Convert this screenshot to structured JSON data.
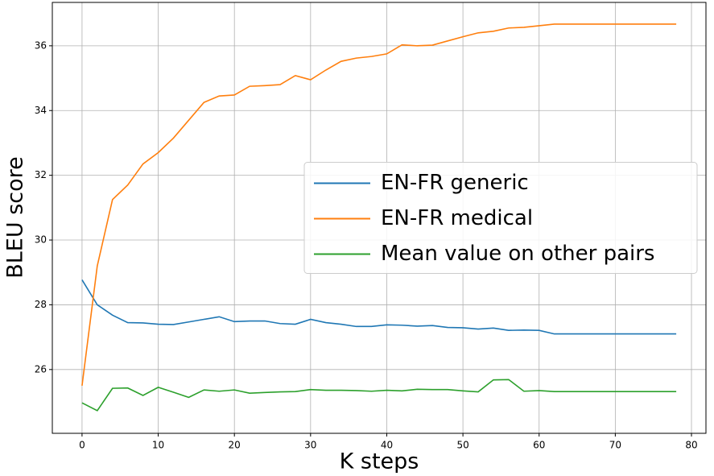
{
  "chart_data": {
    "type": "line",
    "x_label": "K steps",
    "y_label": "BLEU score",
    "x": [
      0,
      2,
      4,
      6,
      8,
      10,
      12,
      14,
      16,
      18,
      20,
      22,
      24,
      26,
      28,
      30,
      32,
      34,
      36,
      38,
      40,
      42,
      44,
      46,
      48,
      50,
      52,
      54,
      56,
      58,
      60,
      62,
      64,
      66,
      68,
      70,
      72,
      74,
      76,
      78
    ],
    "series": [
      {
        "name": "EN-FR generic",
        "color": "#1f77b4",
        "values": [
          28.77,
          28.0,
          27.68,
          27.45,
          27.44,
          27.4,
          27.39,
          27.47,
          27.55,
          27.63,
          27.48,
          27.5,
          27.5,
          27.42,
          27.4,
          27.55,
          27.45,
          27.4,
          27.33,
          27.33,
          27.38,
          27.37,
          27.34,
          27.36,
          27.3,
          27.29,
          27.25,
          27.28,
          27.21,
          27.22,
          27.21,
          27.1,
          27.1,
          27.1,
          27.1,
          27.1,
          27.1,
          27.1,
          27.1,
          27.1
        ]
      },
      {
        "name": "EN-FR medical",
        "color": "#ff7f0e",
        "values": [
          25.5,
          29.2,
          31.25,
          31.7,
          32.35,
          32.7,
          33.15,
          33.7,
          34.25,
          34.45,
          34.48,
          34.75,
          34.77,
          34.8,
          35.08,
          34.95,
          35.25,
          35.52,
          35.62,
          35.67,
          35.75,
          36.03,
          36.0,
          36.02,
          36.15,
          36.28,
          36.4,
          36.45,
          36.55,
          36.57,
          36.62,
          36.67,
          36.67,
          36.67,
          36.67,
          36.67,
          36.67,
          36.67,
          36.67,
          36.67
        ]
      },
      {
        "name": "Mean value on other pairs",
        "color": "#2ca02c",
        "values": [
          24.97,
          24.73,
          25.42,
          25.43,
          25.2,
          25.45,
          25.3,
          25.14,
          25.37,
          25.33,
          25.37,
          25.27,
          25.29,
          25.31,
          25.32,
          25.38,
          25.36,
          25.36,
          25.35,
          25.33,
          25.36,
          25.34,
          25.39,
          25.38,
          25.38,
          25.34,
          25.31,
          25.68,
          25.69,
          25.33,
          25.35,
          25.32,
          25.32,
          25.32,
          25.32,
          25.32,
          25.32,
          25.32,
          25.32,
          25.32
        ]
      }
    ],
    "xlim": [
      -3.9,
      81.9
    ],
    "ylim": [
      24.03,
      37.34
    ],
    "xticks": [
      0,
      10,
      20,
      30,
      40,
      50,
      60,
      70,
      80
    ],
    "yticks": [
      26,
      28,
      30,
      32,
      34,
      36
    ],
    "grid": true,
    "legend": "center right"
  }
}
